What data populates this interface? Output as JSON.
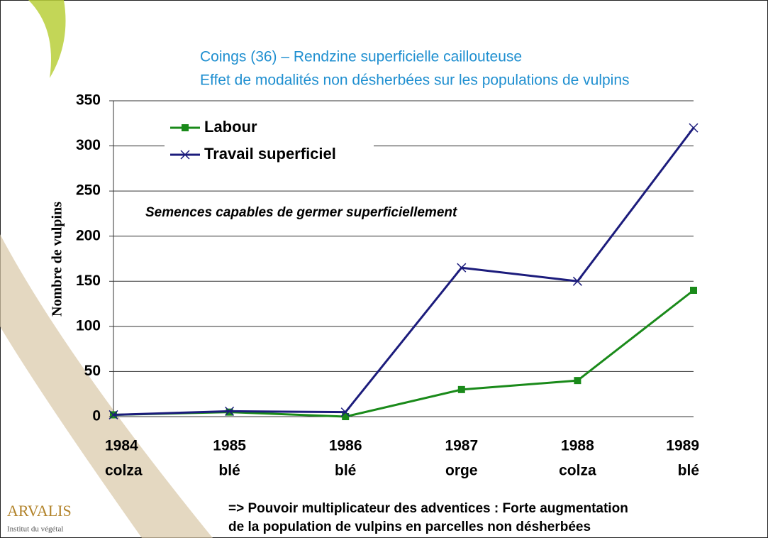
{
  "chart_data": {
    "type": "line",
    "title_lines": [
      "Coings (36) – Rendzine superficielle caillouteuse",
      "Effet de modalités non désherbées sur les populations de vulpins"
    ],
    "y_label": "Nombre de vulpins",
    "annotation": "Semences capables de germer superficiellement",
    "categories": [
      "1984",
      "1985",
      "1986",
      "1987",
      "1988",
      "1989"
    ],
    "category_sublabels": [
      "colza",
      "blé",
      "blé",
      "orge",
      "colza",
      "blé"
    ],
    "series": [
      {
        "name": "Labour",
        "color": "#1a8a1a",
        "marker": "square",
        "values": [
          2,
          5,
          0,
          30,
          40,
          140
        ]
      },
      {
        "name": "Travail superficiel",
        "color": "#1c1c7c",
        "marker": "x",
        "values": [
          2,
          6,
          5,
          165,
          150,
          320
        ]
      }
    ],
    "ylim": [
      0,
      350
    ],
    "yticks": [
      0,
      50,
      100,
      150,
      200,
      250,
      300,
      350
    ],
    "grid": true,
    "legend": "top-left"
  },
  "footer_lines": [
    "=> Pouvoir multiplicateur des adventices : Forte augmentation",
    "de la population de vulpins en parcelles non désherbées"
  ],
  "logo": {
    "name": "ARVALIS",
    "tagline": "Institut du végétal"
  }
}
